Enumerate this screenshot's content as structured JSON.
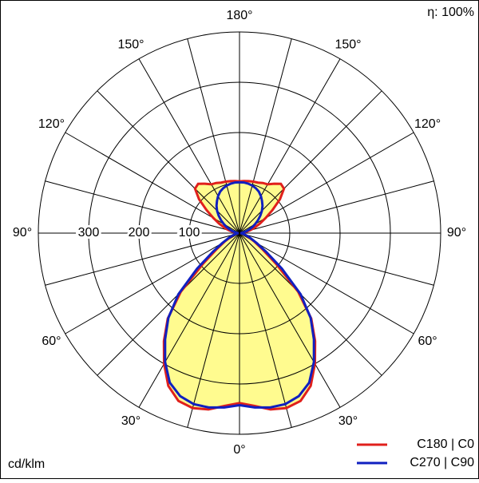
{
  "chart_data": {
    "type": "polar",
    "efficiency": "η: 100%",
    "unit": "cd/klm",
    "rlim": [
      0,
      400
    ],
    "rticks": [
      100,
      200,
      300
    ],
    "thetagrid": [
      0,
      15,
      30,
      45,
      60,
      75,
      90,
      105,
      120,
      135,
      150,
      165,
      180
    ],
    "thetaticks": [
      {
        "value": 0,
        "label": "0°"
      },
      {
        "value": 30,
        "label": "30°"
      },
      {
        "value": 60,
        "label": "60°"
      },
      {
        "value": 90,
        "label": "90°"
      },
      {
        "value": 120,
        "label": "120°"
      },
      {
        "value": 150,
        "label": "150°"
      },
      {
        "value": 180,
        "label": "180°"
      }
    ],
    "angles": [
      0,
      5,
      10,
      15,
      20,
      25,
      30,
      35,
      40,
      45,
      50,
      55,
      60,
      65,
      70,
      75,
      80,
      85,
      90,
      95,
      100,
      105,
      110,
      115,
      120,
      125,
      130,
      135,
      140,
      145,
      150,
      155,
      160,
      165,
      170,
      175,
      180
    ],
    "fill": "#fffb8f",
    "series": [
      {
        "name": "C180 | C0",
        "color": "#e0201c",
        "values": [
          338,
          345,
          356,
          360,
          355,
          335,
          300,
          262,
          222,
          165,
          95,
          55,
          35,
          22,
          15,
          10,
          6,
          3,
          2,
          5,
          12,
          22,
          32,
          45,
          60,
          80,
          105,
          125,
          128,
          120,
          112,
          110,
          107,
          106,
          105,
          104,
          103
        ]
      },
      {
        "name": "C270 | C90",
        "color": "#1020c0",
        "values": [
          342,
          348,
          352,
          352,
          345,
          328,
          296,
          258,
          220,
          172,
          110,
          65,
          40,
          25,
          16,
          10,
          6,
          3,
          2,
          4,
          8,
          14,
          20,
          28,
          36,
          45,
          54,
          63,
          71,
          78,
          85,
          91,
          95,
          98,
          100,
          101,
          101
        ]
      }
    ]
  }
}
